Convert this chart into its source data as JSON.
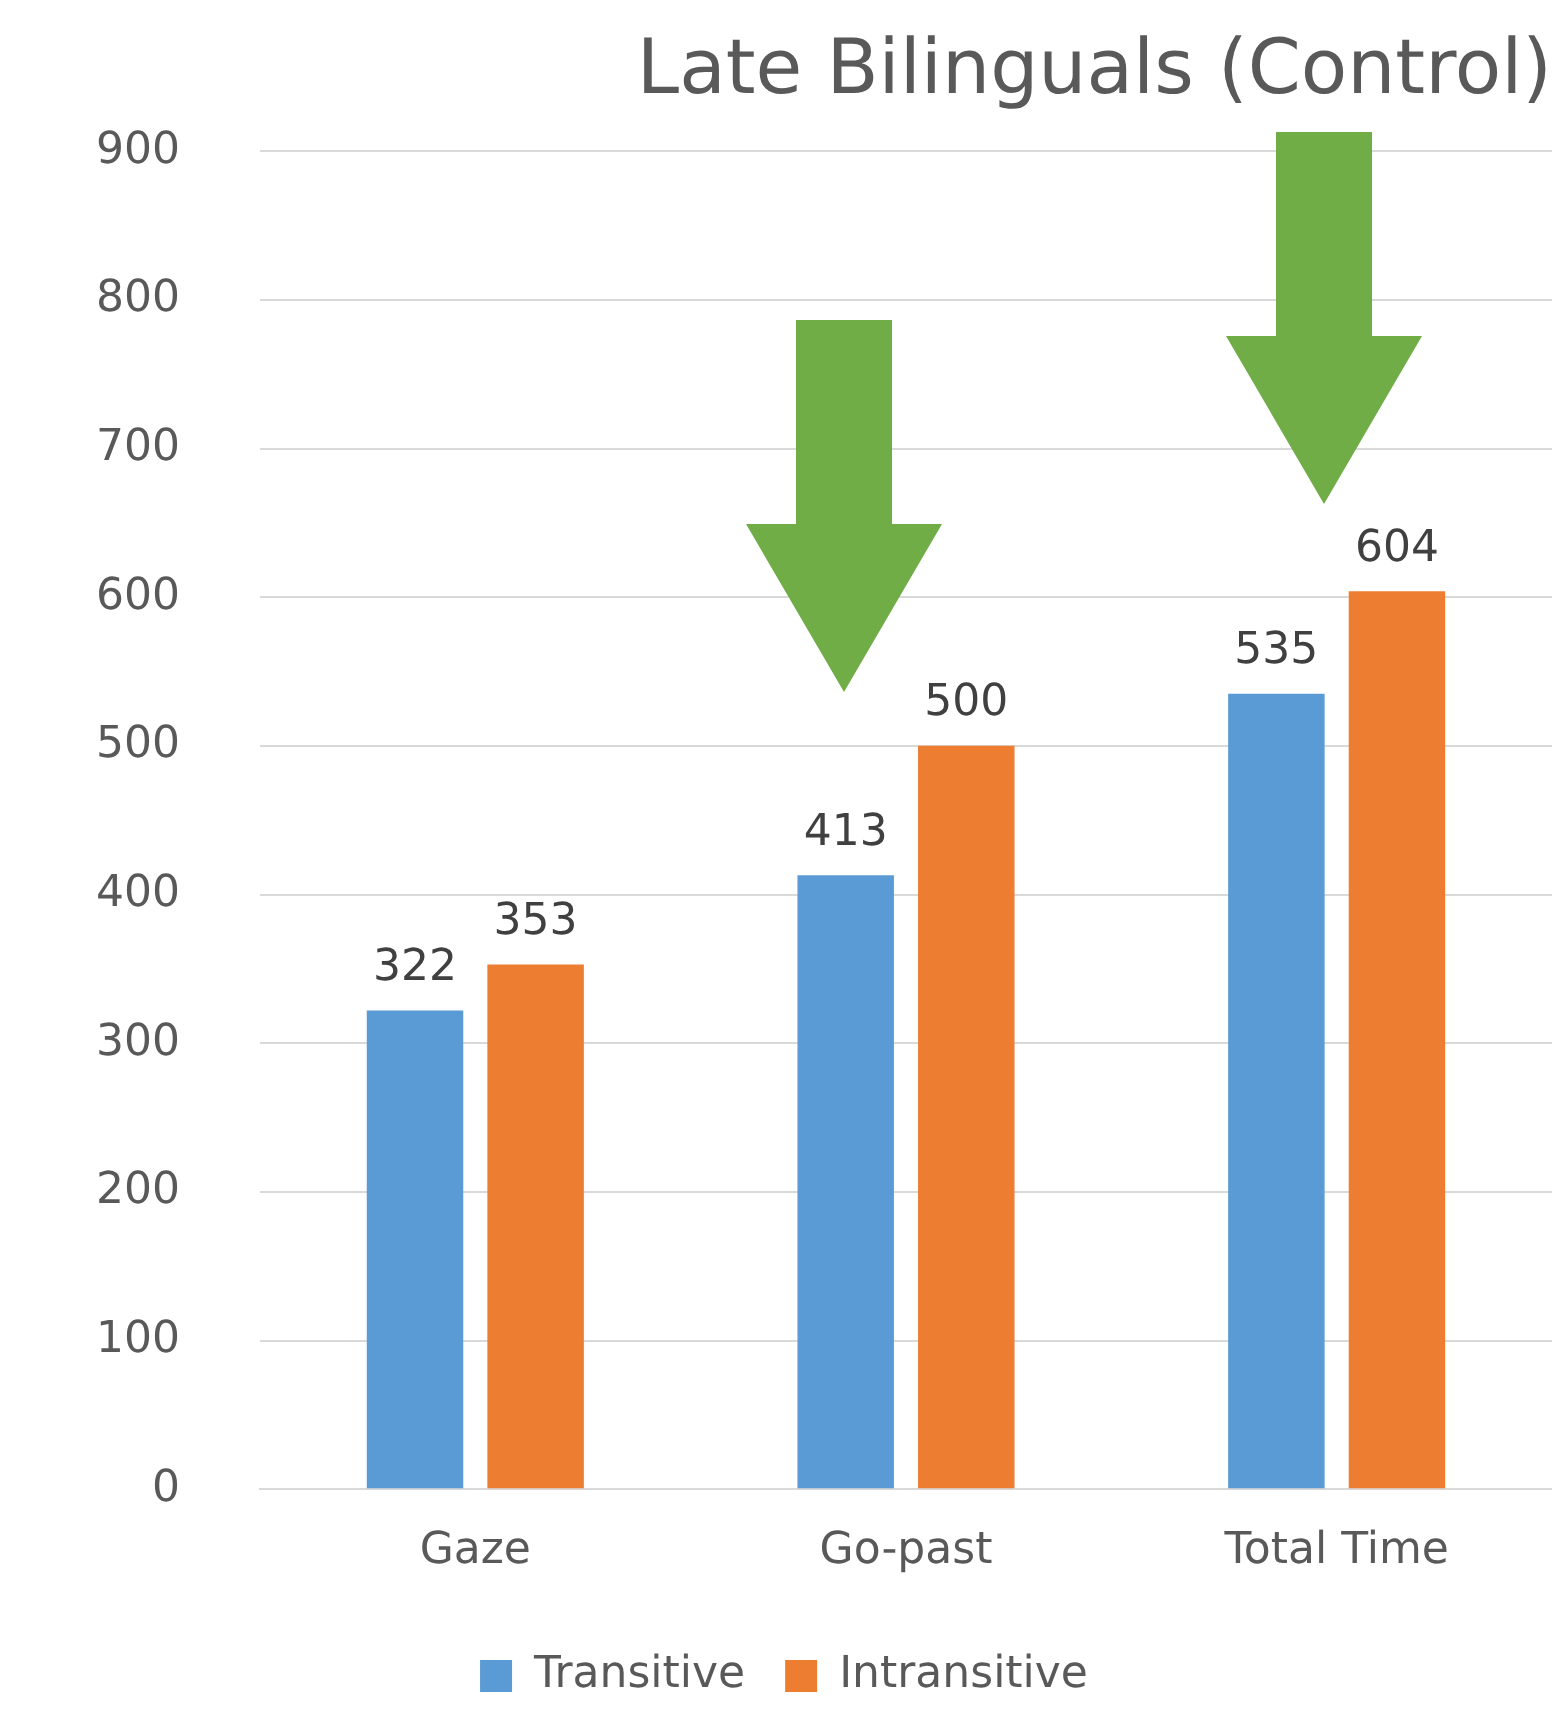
{
  "chart_data": {
    "type": "bar",
    "title": "Late Bilinguals (Control)",
    "categories": [
      "Gaze",
      "Go-past",
      "Total Time"
    ],
    "series": [
      {
        "name": "Transitive",
        "color": "#5b9bd5",
        "values": [
          322,
          413,
          535
        ]
      },
      {
        "name": "Intransitive",
        "color": "#ed7d31",
        "values": [
          353,
          500,
          604
        ]
      }
    ],
    "ylim": [
      0,
      900
    ],
    "yticks": [
      0,
      100,
      200,
      300,
      400,
      500,
      600,
      700,
      800,
      900
    ],
    "grid": "y",
    "legend": "bottom",
    "data_labels": true
  }
}
